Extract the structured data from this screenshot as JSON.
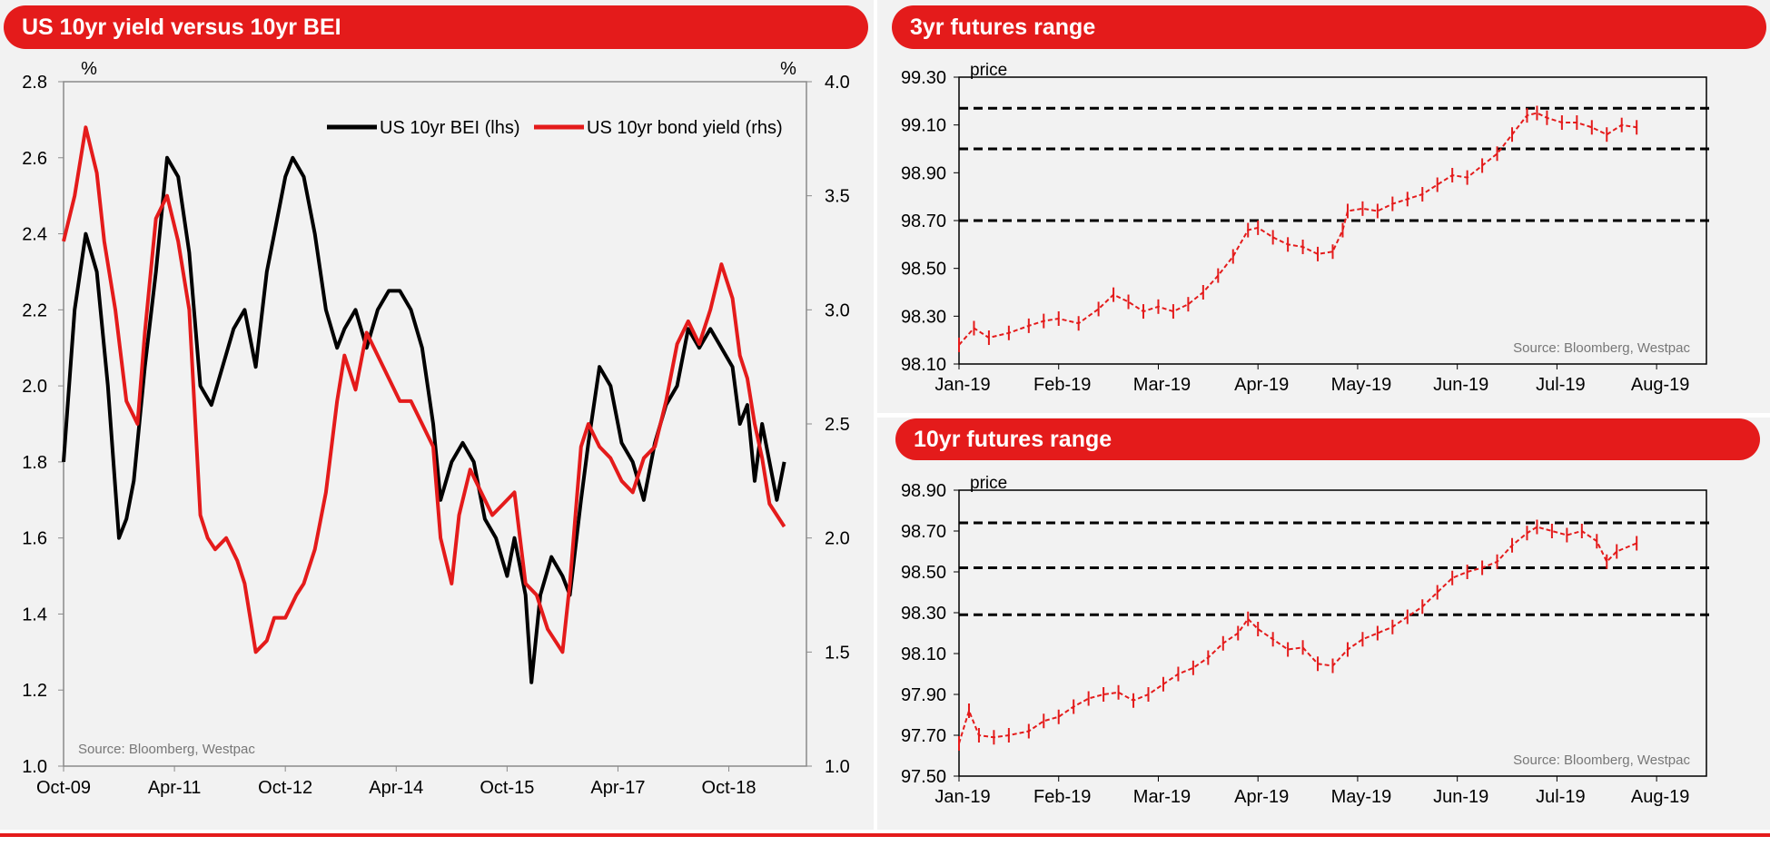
{
  "colors": {
    "red": "#e41b1b",
    "black": "#000000",
    "panel": "#f2f2f2",
    "axis": "#8a8a8a"
  },
  "panels": {
    "left_title": "US 10yr yield versus 10yr BEI",
    "right_top_title": "3yr futures range",
    "right_bottom_title": "10yr futures range"
  },
  "chart_data": [
    {
      "type": "line",
      "title": "US 10yr yield versus 10yr BEI",
      "ylabel_left": "%",
      "ylabel_right": "%",
      "ylim_left": [
        1.0,
        2.8
      ],
      "ylim_right": [
        1.0,
        4.0
      ],
      "yticks_left": [
        "1.0",
        "1.2",
        "1.4",
        "1.6",
        "1.8",
        "2.0",
        "2.2",
        "2.4",
        "2.6",
        "2.8"
      ],
      "yticks_right": [
        "1.0",
        "1.5",
        "2.0",
        "2.5",
        "3.0",
        "3.5",
        "4.0"
      ],
      "x_tick_labels": [
        "Oct-09",
        "Apr-11",
        "Oct-12",
        "Apr-14",
        "Oct-15",
        "Apr-17",
        "Oct-18"
      ],
      "legend_position": "top-right",
      "source": "Source: Bloomberg, Westpac",
      "series": [
        {
          "name": "US 10yr BEI (lhs)",
          "color": "#000000",
          "axis": "left",
          "x": [
            2009.75,
            2009.9,
            2010.05,
            2010.2,
            2010.35,
            2010.5,
            2010.6,
            2010.7,
            2010.85,
            2011.0,
            2011.15,
            2011.3,
            2011.45,
            2011.6,
            2011.75,
            2011.9,
            2012.05,
            2012.2,
            2012.35,
            2012.5,
            2012.6,
            2012.75,
            2012.85,
            2013.0,
            2013.15,
            2013.3,
            2013.45,
            2013.55,
            2013.7,
            2013.85,
            2014.0,
            2014.15,
            2014.3,
            2014.45,
            2014.6,
            2014.75,
            2014.85,
            2015.0,
            2015.15,
            2015.3,
            2015.45,
            2015.6,
            2015.75,
            2015.85,
            2016.0,
            2016.08,
            2016.2,
            2016.35,
            2016.5,
            2016.6,
            2016.75,
            2016.85,
            2017.0,
            2017.15,
            2017.3,
            2017.45,
            2017.6,
            2017.75,
            2017.9,
            2018.05,
            2018.2,
            2018.35,
            2018.5,
            2018.65,
            2018.8,
            2018.9,
            2019.0,
            2019.1,
            2019.2,
            2019.3,
            2019.4,
            2019.5
          ],
          "y": [
            1.8,
            2.2,
            2.4,
            2.3,
            2.0,
            1.6,
            1.65,
            1.75,
            2.05,
            2.3,
            2.6,
            2.55,
            2.35,
            2.0,
            1.95,
            2.05,
            2.15,
            2.2,
            2.05,
            2.3,
            2.4,
            2.55,
            2.6,
            2.55,
            2.4,
            2.2,
            2.1,
            2.15,
            2.2,
            2.1,
            2.2,
            2.25,
            2.25,
            2.2,
            2.1,
            1.9,
            1.7,
            1.8,
            1.85,
            1.8,
            1.65,
            1.6,
            1.5,
            1.6,
            1.45,
            1.22,
            1.45,
            1.55,
            1.5,
            1.45,
            1.7,
            1.85,
            2.05,
            2.0,
            1.85,
            1.8,
            1.7,
            1.85,
            1.95,
            2.0,
            2.15,
            2.1,
            2.15,
            2.1,
            2.05,
            1.9,
            1.95,
            1.75,
            1.9,
            1.8,
            1.7,
            1.8
          ]
        },
        {
          "name": "US 10yr bond yield (rhs)",
          "color": "#e41b1b",
          "axis": "right",
          "x": [
            2009.75,
            2009.9,
            2010.05,
            2010.2,
            2010.3,
            2010.45,
            2010.6,
            2010.75,
            2010.85,
            2011.0,
            2011.15,
            2011.3,
            2011.45,
            2011.6,
            2011.7,
            2011.8,
            2011.95,
            2012.1,
            2012.2,
            2012.35,
            2012.5,
            2012.6,
            2012.75,
            2012.9,
            2013.0,
            2013.15,
            2013.3,
            2013.45,
            2013.55,
            2013.7,
            2013.85,
            2014.0,
            2014.15,
            2014.3,
            2014.45,
            2014.6,
            2014.75,
            2014.85,
            2015.0,
            2015.1,
            2015.25,
            2015.4,
            2015.55,
            2015.7,
            2015.85,
            2016.0,
            2016.15,
            2016.3,
            2016.4,
            2016.5,
            2016.6,
            2016.75,
            2016.85,
            2017.0,
            2017.15,
            2017.3,
            2017.45,
            2017.6,
            2017.75,
            2017.9,
            2018.05,
            2018.2,
            2018.35,
            2018.5,
            2018.65,
            2018.8,
            2018.9,
            2019.0,
            2019.1,
            2019.2,
            2019.3,
            2019.4,
            2019.5
          ],
          "y": [
            3.3,
            3.5,
            3.8,
            3.6,
            3.3,
            3.0,
            2.6,
            2.5,
            2.9,
            3.4,
            3.5,
            3.3,
            3.0,
            2.1,
            2.0,
            1.95,
            2.0,
            1.9,
            1.8,
            1.5,
            1.55,
            1.65,
            1.65,
            1.75,
            1.8,
            1.95,
            2.2,
            2.6,
            2.8,
            2.65,
            2.9,
            2.8,
            2.7,
            2.6,
            2.6,
            2.5,
            2.4,
            2.0,
            1.8,
            2.1,
            2.3,
            2.2,
            2.1,
            2.15,
            2.2,
            1.8,
            1.75,
            1.6,
            1.55,
            1.5,
            1.8,
            2.4,
            2.5,
            2.4,
            2.35,
            2.25,
            2.2,
            2.35,
            2.4,
            2.6,
            2.85,
            2.95,
            2.85,
            3.0,
            3.2,
            3.05,
            2.8,
            2.7,
            2.5,
            2.35,
            2.15,
            2.1,
            2.05
          ]
        }
      ]
    },
    {
      "type": "line",
      "title": "3yr futures range",
      "ylabel": "price",
      "ylim": [
        98.1,
        99.3
      ],
      "yticks": [
        "98.10",
        "98.30",
        "98.50",
        "98.70",
        "98.90",
        "99.10",
        "99.30"
      ],
      "x_tick_labels": [
        "Jan-19",
        "Feb-19",
        "Mar-19",
        "Apr-19",
        "May-19",
        "Jun-19",
        "Jul-19",
        "Aug-19"
      ],
      "xlim": [
        0,
        7.5
      ],
      "range_levels": [
        99.17,
        99.0,
        98.7
      ],
      "source": "Source: Bloomberg, Westpac",
      "series": [
        {
          "name": "",
          "color": "#e41b1b",
          "x": [
            0.0,
            0.15,
            0.3,
            0.5,
            0.7,
            0.85,
            1.0,
            1.2,
            1.4,
            1.55,
            1.7,
            1.85,
            2.0,
            2.15,
            2.3,
            2.45,
            2.6,
            2.75,
            2.9,
            3.0,
            3.15,
            3.3,
            3.45,
            3.6,
            3.75,
            3.85,
            3.9,
            4.05,
            4.2,
            4.35,
            4.5,
            4.65,
            4.8,
            4.95,
            5.1,
            5.25,
            5.4,
            5.55,
            5.7,
            5.8,
            5.9,
            6.05,
            6.2,
            6.35,
            6.5,
            6.65,
            6.8
          ],
          "y": [
            98.18,
            98.25,
            98.21,
            98.23,
            98.26,
            98.28,
            98.29,
            98.27,
            98.33,
            98.39,
            98.36,
            98.32,
            98.34,
            98.32,
            98.35,
            98.4,
            98.47,
            98.55,
            98.66,
            98.67,
            98.63,
            98.6,
            98.59,
            98.56,
            98.57,
            98.66,
            98.74,
            98.75,
            98.74,
            98.77,
            98.79,
            98.81,
            98.85,
            98.89,
            98.88,
            98.93,
            98.98,
            99.06,
            99.14,
            99.15,
            99.13,
            99.11,
            99.11,
            99.09,
            99.06,
            99.1,
            99.09
          ]
        }
      ]
    },
    {
      "type": "line",
      "title": "10yr futures range",
      "ylabel": "price",
      "ylim": [
        97.5,
        98.9
      ],
      "yticks": [
        "97.50",
        "97.70",
        "97.90",
        "98.10",
        "98.30",
        "98.50",
        "98.70",
        "98.90"
      ],
      "x_tick_labels": [
        "Jan-19",
        "Feb-19",
        "Mar-19",
        "Apr-19",
        "May-19",
        "Jun-19",
        "Jul-19",
        "Aug-19"
      ],
      "xlim": [
        0,
        7.5
      ],
      "range_levels": [
        98.74,
        98.52,
        98.29
      ],
      "source": "Source: Bloomberg, Westpac",
      "series": [
        {
          "name": "",
          "color": "#e41b1b",
          "x": [
            0.0,
            0.1,
            0.2,
            0.35,
            0.5,
            0.7,
            0.85,
            1.0,
            1.15,
            1.3,
            1.45,
            1.6,
            1.75,
            1.9,
            2.05,
            2.2,
            2.35,
            2.5,
            2.65,
            2.8,
            2.9,
            3.0,
            3.15,
            3.3,
            3.45,
            3.6,
            3.75,
            3.9,
            4.05,
            4.2,
            4.35,
            4.5,
            4.65,
            4.8,
            4.95,
            5.1,
            5.25,
            5.4,
            5.55,
            5.7,
            5.8,
            5.95,
            6.1,
            6.25,
            6.4,
            6.5,
            6.6,
            6.8
          ],
          "y": [
            97.66,
            97.82,
            97.7,
            97.69,
            97.7,
            97.72,
            97.77,
            97.79,
            97.84,
            97.88,
            97.9,
            97.91,
            97.87,
            97.9,
            97.95,
            98.0,
            98.03,
            98.08,
            98.15,
            98.2,
            98.27,
            98.22,
            98.17,
            98.12,
            98.13,
            98.05,
            98.04,
            98.12,
            98.17,
            98.2,
            98.23,
            98.28,
            98.33,
            98.4,
            98.47,
            98.5,
            98.52,
            98.55,
            98.63,
            98.69,
            98.72,
            98.7,
            98.68,
            98.7,
            98.65,
            98.55,
            98.6,
            98.64
          ]
        }
      ]
    }
  ]
}
